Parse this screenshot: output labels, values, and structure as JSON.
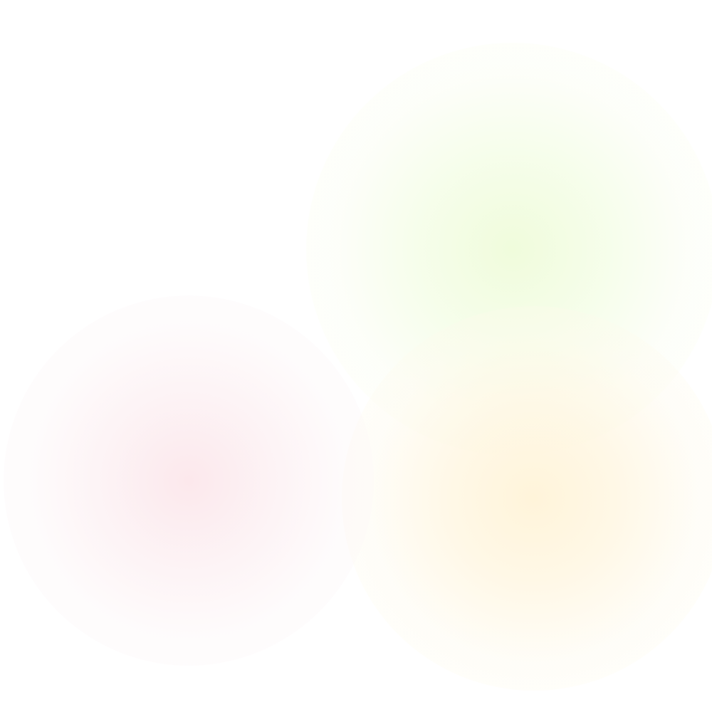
{
  "background": {
    "base_color": "#ffffff",
    "glows": [
      {
        "name": "green",
        "color": "#f0fcdc"
      },
      {
        "name": "pink",
        "color": "#fce8ec"
      },
      {
        "name": "yellow",
        "color": "#fff4da"
      }
    ]
  }
}
